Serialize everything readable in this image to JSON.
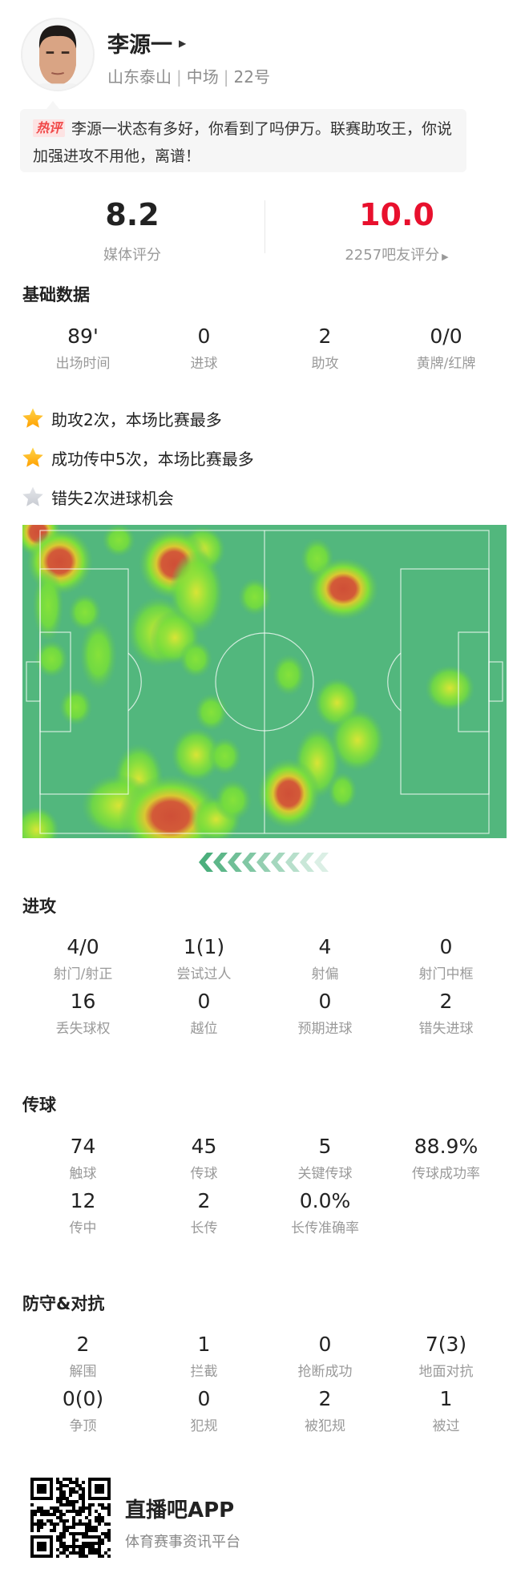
{
  "player": {
    "name": "李源一",
    "team": "山东泰山",
    "position": "中场",
    "number": "22号"
  },
  "comment": {
    "tag": "热评",
    "text": "李源一状态有多好，你看到了吗伊万。联赛助攻王，你说加强进攻不用他，离谱！"
  },
  "ratings": {
    "media": {
      "value": "8.2",
      "label": "媒体评分"
    },
    "fans": {
      "value": "10.0",
      "label": "2257吧友评分"
    }
  },
  "basic": {
    "title": "基础数据",
    "stats": [
      {
        "value": "89'",
        "label": "出场时间"
      },
      {
        "value": "0",
        "label": "进球"
      },
      {
        "value": "2",
        "label": "助攻"
      },
      {
        "value": "0/0",
        "label": "黄牌/红牌"
      }
    ]
  },
  "highlights": [
    {
      "text": "助攻2次，本场比赛最多",
      "star": "gold"
    },
    {
      "text": "成功传中5次，本场比赛最多",
      "star": "gold"
    },
    {
      "text": "错失2次进球机会",
      "star": "grey"
    }
  ],
  "heatmap": {
    "attack_direction": "left"
  },
  "attack": {
    "title": "进攻",
    "stats": [
      {
        "value": "4/0",
        "label": "射门/射正"
      },
      {
        "value": "1(1)",
        "label": "尝试过人"
      },
      {
        "value": "4",
        "label": "射偏"
      },
      {
        "value": "0",
        "label": "射门中框"
      },
      {
        "value": "16",
        "label": "丢失球权"
      },
      {
        "value": "0",
        "label": "越位"
      },
      {
        "value": "0",
        "label": "预期进球"
      },
      {
        "value": "2",
        "label": "错失进球"
      }
    ]
  },
  "passing": {
    "title": "传球",
    "stats": [
      {
        "value": "74",
        "label": "触球"
      },
      {
        "value": "45",
        "label": "传球"
      },
      {
        "value": "5",
        "label": "关键传球"
      },
      {
        "value": "88.9%",
        "label": "传球成功率"
      },
      {
        "value": "12",
        "label": "传中"
      },
      {
        "value": "2",
        "label": "长传"
      },
      {
        "value": "0.0%",
        "label": "长传准确率"
      }
    ]
  },
  "defense": {
    "title": "防守&对抗",
    "stats": [
      {
        "value": "2",
        "label": "解围"
      },
      {
        "value": "1",
        "label": "拦截"
      },
      {
        "value": "0",
        "label": "抢断成功"
      },
      {
        "value": "7(3)",
        "label": "地面对抗"
      },
      {
        "value": "0(0)",
        "label": "争顶"
      },
      {
        "value": "0",
        "label": "犯规"
      },
      {
        "value": "2",
        "label": "被犯规"
      },
      {
        "value": "1",
        "label": "被过"
      }
    ]
  },
  "footer": {
    "app_name": "直播吧APP",
    "tagline": "体育赛事资讯平台"
  },
  "colors": {
    "accent_red": "#e8102d",
    "pitch_green": "#52b77d",
    "star_gold": "#ffb300",
    "star_grey": "#d3d5db"
  }
}
